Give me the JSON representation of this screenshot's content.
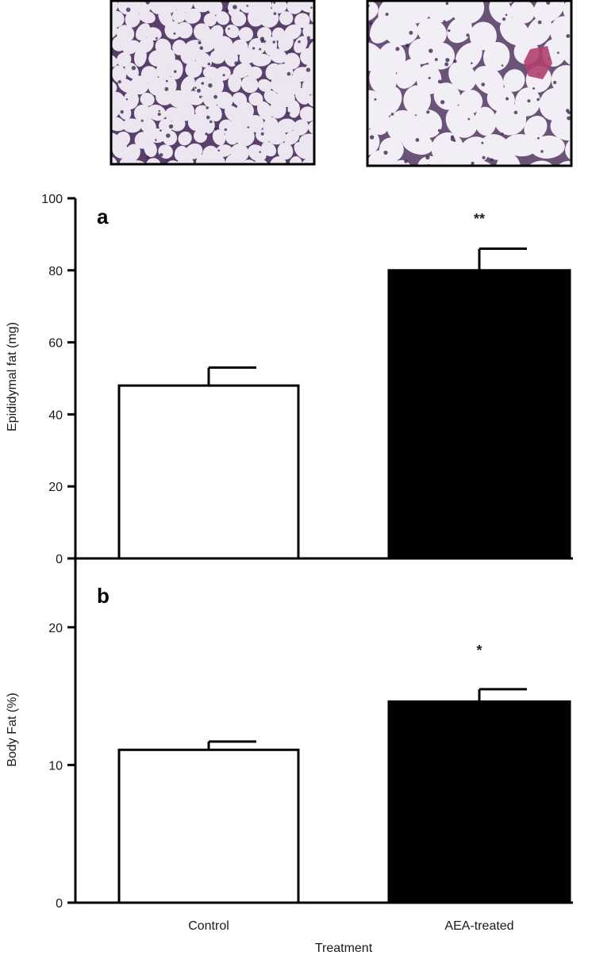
{
  "histology": [
    {
      "name": "Control",
      "cell_color": "#ece6f1",
      "membrane_color": "#5a3f6d",
      "stain_color": "#9a7aa8"
    },
    {
      "name": "AEA-treated",
      "cell_color": "#f2eef5",
      "membrane_color": "#6b5278",
      "stain_color": "#b04070"
    }
  ],
  "chart_data": [
    {
      "type": "bar",
      "panel_label": "a",
      "categories": [
        "Control",
        "AEA-treated"
      ],
      "values": [
        48,
        80
      ],
      "errors": [
        5,
        6
      ],
      "bar_colors": [
        "#ffffff",
        "#000000"
      ],
      "significance": [
        "",
        "**"
      ],
      "ylabel": "Epididymal fat (mg)",
      "xlabel": "",
      "ylim": [
        0,
        100
      ],
      "yticks": [
        0,
        20,
        40,
        60,
        80,
        100
      ],
      "grid": false
    },
    {
      "type": "bar",
      "panel_label": "b",
      "categories": [
        "Control",
        "AEA-treated"
      ],
      "values": [
        11.1,
        14.6
      ],
      "errors": [
        0.6,
        0.9
      ],
      "bar_colors": [
        "#ffffff",
        "#000000"
      ],
      "significance": [
        "",
        "*"
      ],
      "ylabel": "Body Fat (%)",
      "xlabel": "Treatment",
      "ylim": [
        0,
        25
      ],
      "yticks": [
        0,
        10,
        20
      ],
      "grid": false
    }
  ]
}
